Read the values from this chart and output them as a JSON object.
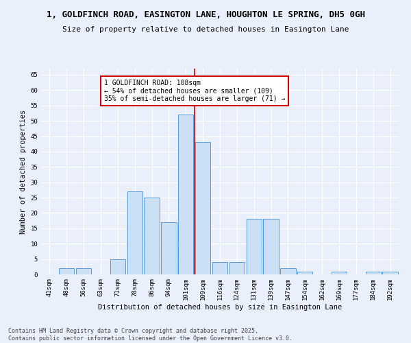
{
  "title1": "1, GOLDFINCH ROAD, EASINGTON LANE, HOUGHTON LE SPRING, DH5 0GH",
  "title2": "Size of property relative to detached houses in Easington Lane",
  "xlabel": "Distribution of detached houses by size in Easington Lane",
  "ylabel": "Number of detached properties",
  "categories": [
    "41sqm",
    "48sqm",
    "56sqm",
    "63sqm",
    "71sqm",
    "78sqm",
    "86sqm",
    "94sqm",
    "101sqm",
    "109sqm",
    "116sqm",
    "124sqm",
    "131sqm",
    "139sqm",
    "147sqm",
    "154sqm",
    "162sqm",
    "169sqm",
    "177sqm",
    "184sqm",
    "192sqm"
  ],
  "values": [
    0,
    2,
    2,
    0,
    5,
    27,
    25,
    17,
    52,
    43,
    4,
    4,
    18,
    18,
    2,
    1,
    0,
    1,
    0,
    1,
    1
  ],
  "bar_color": "#cce0f5",
  "bar_edge_color": "#5b9bd5",
  "annotation_text": "1 GOLDFINCH ROAD: 108sqm\n← 54% of detached houses are smaller (109)\n35% of semi-detached houses are larger (71) →",
  "annotation_box_color": "#ffffff",
  "annotation_box_edge": "#cc0000",
  "ylim": [
    0,
    67
  ],
  "yticks": [
    0,
    5,
    10,
    15,
    20,
    25,
    30,
    35,
    40,
    45,
    50,
    55,
    60,
    65
  ],
  "footnote": "Contains HM Land Registry data © Crown copyright and database right 2025.\nContains public sector information licensed under the Open Government Licence v3.0.",
  "bg_color": "#eaf0fb",
  "plot_bg_color": "#eaf0fb",
  "grid_color": "#ffffff",
  "title1_fontsize": 9,
  "title2_fontsize": 8,
  "axis_fontsize": 7.5,
  "tick_fontsize": 6.5,
  "annot_fontsize": 7,
  "footnote_fontsize": 6
}
